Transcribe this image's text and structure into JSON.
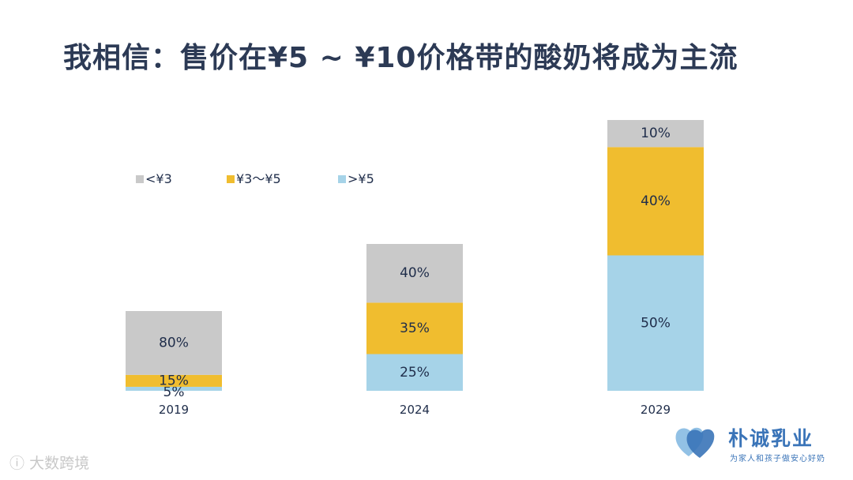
{
  "title": "我相信：售价在¥5 ~ ¥10价格带的酸奶将成为主流",
  "colors": {
    "<¥3": "#c9c9c9",
    "¥3～¥5": "#f0bd2f",
    ">¥5": "#a6d3e8",
    "title": "#2c3a55",
    "brand": "#3a74b8"
  },
  "chart_data": {
    "type": "bar",
    "stacked": true,
    "categories": [
      "2019",
      "2024",
      "2029"
    ],
    "series": [
      {
        "name": ">¥5",
        "values": [
          5,
          25,
          50
        ],
        "labels": [
          "5%",
          "25%",
          "50%"
        ]
      },
      {
        "name": "¥3～¥5",
        "values": [
          15,
          35,
          40
        ],
        "labels": [
          "15%",
          "35%",
          "40%"
        ]
      },
      {
        "name": "<¥3",
        "values": [
          80,
          40,
          10
        ],
        "labels": [
          "80%",
          "40%",
          "10%"
        ]
      }
    ],
    "legend": {
      "position": "top-left",
      "order": [
        "<¥3",
        "¥3～¥5",
        ">¥5"
      ]
    },
    "grid": false
  },
  "brand": {
    "name": "朴诚乳业",
    "slogan": "为家人和孩子做安心好奶"
  },
  "watermark": "大数跨境"
}
